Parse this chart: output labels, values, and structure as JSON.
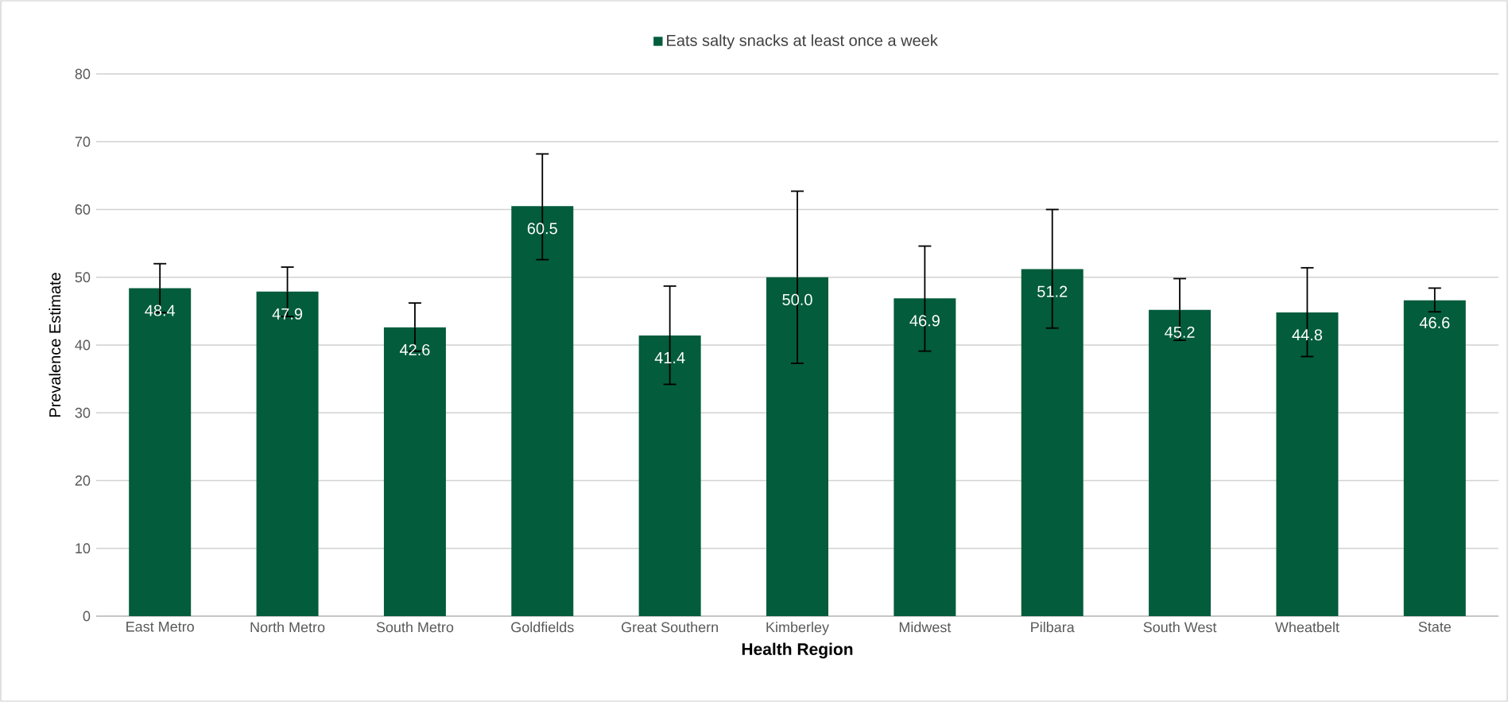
{
  "chart_data": {
    "type": "bar",
    "xlabel": "Health Region",
    "ylabel": "Prevalence Estimate",
    "categories": [
      "East Metro",
      "North Metro",
      "South Metro",
      "Goldfields",
      "Great Southern",
      "Kimberley",
      "Midwest",
      "Pilbara",
      "South West",
      "Wheatbelt",
      "State"
    ],
    "series": [
      {
        "name": "Eats salty snacks at least once a week",
        "color": "#035c3b",
        "values": [
          48.4,
          47.9,
          42.6,
          60.5,
          41.4,
          50.0,
          46.9,
          51.2,
          45.2,
          44.8,
          46.6
        ],
        "errors": [
          [
            44.8,
            52.0
          ],
          [
            44.2,
            51.5
          ],
          [
            39.1,
            46.2
          ],
          [
            52.6,
            68.2
          ],
          [
            34.2,
            48.7
          ],
          [
            37.3,
            62.7
          ],
          [
            39.1,
            54.6
          ],
          [
            42.5,
            60.0
          ],
          [
            40.7,
            49.8
          ],
          [
            38.3,
            51.4
          ],
          [
            44.9,
            48.4
          ]
        ],
        "value_labels": [
          "48.4",
          "47.9",
          "42.6",
          "60.5",
          "41.4",
          "50.0",
          "46.9",
          "51.2",
          "45.2",
          "44.8",
          "46.6"
        ]
      }
    ],
    "ylim": [
      0,
      80
    ],
    "yticks": [
      0,
      10,
      20,
      30,
      40,
      50,
      60,
      70,
      80
    ],
    "grid": "y",
    "legend": "top"
  }
}
